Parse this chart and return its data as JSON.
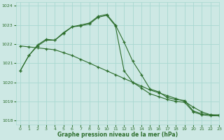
{
  "title": "Graphe pression niveau de la mer (hPa)",
  "bg_color": "#cde8e4",
  "grid_color": "#a8d8d0",
  "line_color": "#2d6e2d",
  "xlim": [
    -0.5,
    23
  ],
  "ylim": [
    1017.8,
    1024.2
  ],
  "yticks": [
    1018,
    1019,
    1020,
    1021,
    1022,
    1023,
    1024
  ],
  "xticks": [
    0,
    1,
    2,
    3,
    4,
    5,
    6,
    7,
    8,
    9,
    10,
    11,
    12,
    13,
    14,
    15,
    16,
    17,
    18,
    19,
    20,
    21,
    22,
    23
  ],
  "line1": [
    1020.6,
    1021.4,
    1021.9,
    1022.2,
    1022.2,
    1022.6,
    1022.9,
    1023.0,
    1023.1,
    1023.45,
    1023.55,
    1023.0,
    1022.1,
    1021.1,
    1020.4,
    1019.65,
    1019.5,
    1019.2,
    1019.1,
    1019.05,
    1018.5,
    1018.35,
    1018.3,
    1018.3
  ],
  "line2": [
    1020.6,
    1021.4,
    1021.95,
    1022.25,
    1022.2,
    1022.55,
    1022.9,
    1022.95,
    1023.05,
    1023.4,
    1023.5,
    1022.95,
    1020.6,
    1020.0,
    1019.7,
    1019.4,
    1019.25,
    1019.1,
    1019.0,
    1018.95,
    1018.45,
    1018.3,
    1018.25,
    1018.25
  ],
  "line3": [
    1021.9,
    1021.85,
    1021.8,
    1021.75,
    1021.7,
    1021.55,
    1021.4,
    1021.2,
    1021.0,
    1020.8,
    1020.6,
    1020.4,
    1020.2,
    1020.0,
    1019.8,
    1019.6,
    1019.45,
    1019.3,
    1019.15,
    1019.0,
    1018.7,
    1018.45,
    1018.3,
    1018.25
  ]
}
